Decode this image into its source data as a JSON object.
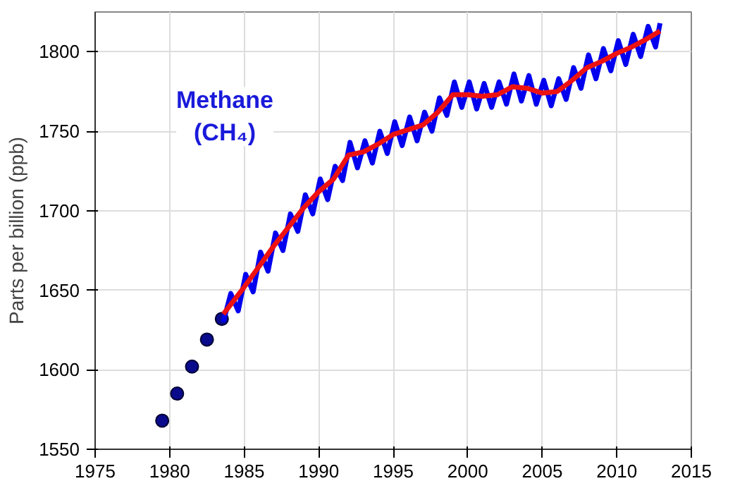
{
  "chart_data": {
    "type": "line",
    "ylabel": "Parts per billion (ppb)",
    "annotations": [
      "Methane\n(CH₄)"
    ],
    "xlim": [
      1975,
      2015
    ],
    "xticks": [
      1975,
      1980,
      1985,
      1990,
      1995,
      2000,
      2005,
      2010,
      2015
    ],
    "ylim": [
      1550,
      1825
    ],
    "yticks": [
      1550,
      1600,
      1650,
      1700,
      1750,
      1800
    ],
    "grid": true,
    "series": [
      {
        "type": "scatter",
        "marker": "circle",
        "color": "#0a0a8c",
        "x": [
          1979.5,
          1980.5,
          1981.5,
          1982.5,
          1983.5
        ],
        "values": [
          1568,
          1585,
          1602,
          1619,
          1632
        ]
      },
      {
        "color": "#0000ee",
        "x": [
          1983.6,
          1984.1,
          1984.6,
          1985.1,
          1985.6,
          1986.1,
          1986.6,
          1987.1,
          1987.6,
          1988.1,
          1988.6,
          1989.1,
          1989.6,
          1990.1,
          1990.6,
          1991.1,
          1991.6,
          1992.1,
          1992.6,
          1993.1,
          1993.6,
          1994.1,
          1994.6,
          1995.1,
          1995.6,
          1996.1,
          1996.6,
          1997.1,
          1997.6,
          1998.1,
          1998.6,
          1999.1,
          1999.6,
          2000.1,
          2000.6,
          2001.1,
          2001.6,
          2002.1,
          2002.6,
          2003.1,
          2003.6,
          2004.1,
          2004.6,
          2005.1,
          2005.6,
          2006.1,
          2006.6,
          2007.1,
          2007.6,
          2008.1,
          2008.6,
          2009.1,
          2009.6,
          2010.1,
          2010.6,
          2011.1,
          2011.6,
          2012.1,
          2012.6,
          2012.9
        ],
        "values": [
          1630,
          1648,
          1637,
          1660,
          1649,
          1674,
          1662,
          1686,
          1675,
          1698,
          1687,
          1710,
          1698,
          1720,
          1707,
          1728,
          1719,
          1743,
          1727,
          1744,
          1730,
          1750,
          1736,
          1756,
          1741,
          1759,
          1744,
          1762,
          1750,
          1771,
          1760,
          1781,
          1765,
          1781,
          1764,
          1780,
          1765,
          1781,
          1767,
          1786,
          1769,
          1785,
          1767,
          1782,
          1766,
          1783,
          1770,
          1790,
          1777,
          1798,
          1783,
          1802,
          1788,
          1807,
          1792,
          1811,
          1797,
          1816,
          1803,
          1818
        ]
      },
      {
        "color": "#ee1111",
        "x": [
          1983.6,
          1985,
          1986,
          1987,
          1988,
          1989,
          1990,
          1991,
          1992,
          1993,
          1994,
          1995,
          1996,
          1997,
          1998,
          1999,
          2000,
          2001,
          2002,
          2003,
          2004,
          2005,
          2006,
          2007,
          2008,
          2009,
          2010,
          2011,
          2012,
          2012.9
        ],
        "values": [
          1635,
          1652,
          1665,
          1678,
          1690,
          1702,
          1712,
          1720,
          1735,
          1737,
          1742,
          1748,
          1751,
          1754,
          1762,
          1773,
          1773,
          1772,
          1773,
          1778,
          1777,
          1774,
          1775,
          1782,
          1790,
          1794,
          1799,
          1803,
          1808,
          1813
        ]
      }
    ]
  }
}
